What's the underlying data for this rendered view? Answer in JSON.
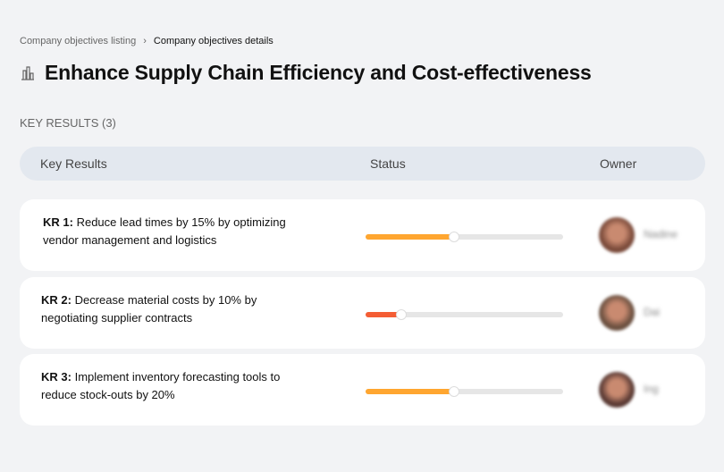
{
  "breadcrumb": {
    "items": [
      "Company objectives listing",
      "Company objectives details"
    ],
    "separator": "›"
  },
  "objective": {
    "icon": "building-chart-icon",
    "title": "Enhance Supply Chain Efficiency and Cost-effectiveness"
  },
  "key_results_label": "KEY RESULTS (3)",
  "table": {
    "headers": [
      "Key Results",
      "Status",
      "Owner"
    ]
  },
  "rows": [
    {
      "id": "KR 1:",
      "text": "Reduce lead times by 15% by optimizing vendor management and logistics",
      "progress": 45,
      "color": "#ffa630",
      "owner": "Nadine",
      "avatar_color": "#7a4a3a"
    },
    {
      "id": "KR 2:",
      "text": "Decrease material costs by 10% by negotiating supplier contracts",
      "progress": 18,
      "color": "#f45d34",
      "owner": "Dai",
      "avatar_color": "#6b5040"
    },
    {
      "id": "KR 3:",
      "text": "Implement inventory forecasting tools to reduce stock-outs by 20%",
      "progress": 45,
      "color": "#ffa630",
      "owner": "Ing",
      "avatar_color": "#5a3a34"
    }
  ]
}
